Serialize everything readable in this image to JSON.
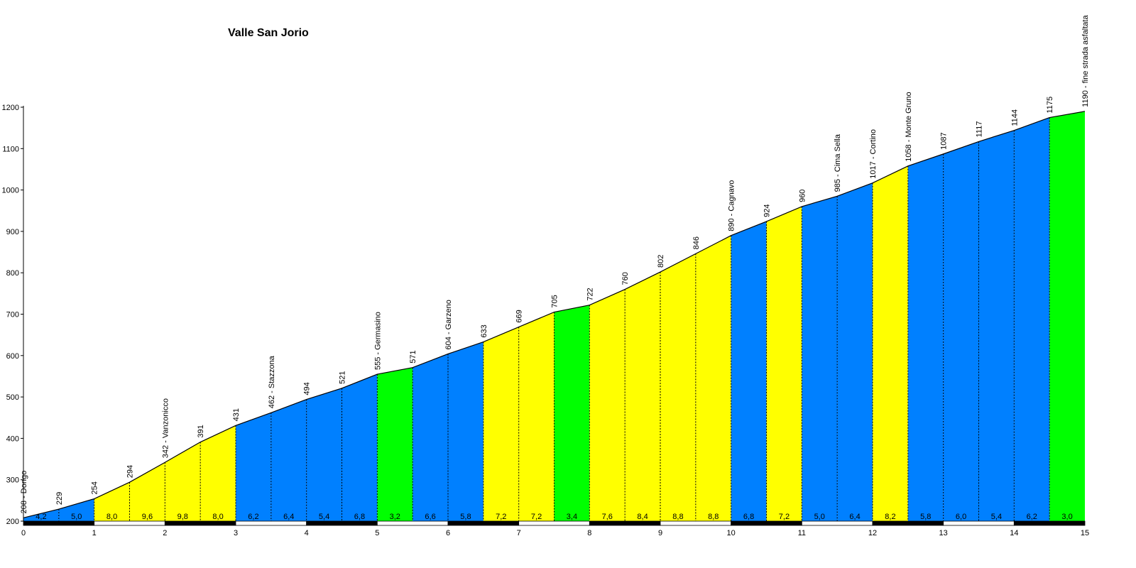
{
  "chart_data": {
    "type": "area",
    "title": "Valle San Jorio",
    "xlabel": "",
    "ylabel": "",
    "xlim": [
      0,
      15
    ],
    "ylim": [
      200,
      1200
    ],
    "x_ticks": [
      "0",
      "1",
      "2",
      "3",
      "4",
      "5",
      "6",
      "7",
      "8",
      "9",
      "10",
      "11",
      "12",
      "13",
      "14",
      "15"
    ],
    "y_ticks": [
      "200",
      "300",
      "400",
      "500",
      "600",
      "700",
      "800",
      "900",
      "1000",
      "1100",
      "1200"
    ],
    "grid": false,
    "legend": "none",
    "profile_points": [
      {
        "km": 0.0,
        "alt": 208,
        "label": "208 - Dongo"
      },
      {
        "km": 0.5,
        "alt": 229,
        "label": "229"
      },
      {
        "km": 1.0,
        "alt": 254,
        "label": "254"
      },
      {
        "km": 1.5,
        "alt": 294,
        "label": "294"
      },
      {
        "km": 2.0,
        "alt": 342,
        "label": "342 - Vanzonicco"
      },
      {
        "km": 2.5,
        "alt": 391,
        "label": "391"
      },
      {
        "km": 3.0,
        "alt": 431,
        "label": "431"
      },
      {
        "km": 3.5,
        "alt": 462,
        "label": "462 - Stazzona"
      },
      {
        "km": 4.0,
        "alt": 494,
        "label": "494"
      },
      {
        "km": 4.5,
        "alt": 521,
        "label": "521"
      },
      {
        "km": 5.0,
        "alt": 555,
        "label": "555 - Germasino"
      },
      {
        "km": 5.5,
        "alt": 571,
        "label": "571"
      },
      {
        "km": 6.0,
        "alt": 604,
        "label": "604 - Garzeno"
      },
      {
        "km": 6.5,
        "alt": 633,
        "label": "633"
      },
      {
        "km": 7.0,
        "alt": 669,
        "label": "669"
      },
      {
        "km": 7.5,
        "alt": 705,
        "label": "705"
      },
      {
        "km": 8.0,
        "alt": 722,
        "label": "722"
      },
      {
        "km": 8.5,
        "alt": 760,
        "label": "760"
      },
      {
        "km": 9.0,
        "alt": 802,
        "label": "802"
      },
      {
        "km": 9.5,
        "alt": 846,
        "label": "846"
      },
      {
        "km": 10.0,
        "alt": 890,
        "label": "890 - Cagnavo"
      },
      {
        "km": 10.5,
        "alt": 924,
        "label": "924"
      },
      {
        "km": 11.0,
        "alt": 960,
        "label": "960"
      },
      {
        "km": 11.5,
        "alt": 985,
        "label": "985 - Cima Sella"
      },
      {
        "km": 12.0,
        "alt": 1017,
        "label": "1017 - Cortino"
      },
      {
        "km": 12.5,
        "alt": 1058,
        "label": "1058 - Monte Gruno"
      },
      {
        "km": 13.0,
        "alt": 1087,
        "label": "1087"
      },
      {
        "km": 13.5,
        "alt": 1117,
        "label": "1117"
      },
      {
        "km": 14.0,
        "alt": 1144,
        "label": "1144"
      },
      {
        "km": 14.5,
        "alt": 1175,
        "label": "1175"
      },
      {
        "km": 15.0,
        "alt": 1190,
        "label": "1190 - fine strada asfaltata"
      }
    ],
    "segments": [
      {
        "from": 0.0,
        "to": 0.5,
        "gradient": "4,2",
        "color": "#0080ff"
      },
      {
        "from": 0.5,
        "to": 1.0,
        "gradient": "5,0",
        "color": "#0080ff"
      },
      {
        "from": 1.0,
        "to": 1.5,
        "gradient": "8,0",
        "color": "#ffff00"
      },
      {
        "from": 1.5,
        "to": 2.0,
        "gradient": "9,6",
        "color": "#ffff00"
      },
      {
        "from": 2.0,
        "to": 2.5,
        "gradient": "9,8",
        "color": "#ffff00"
      },
      {
        "from": 2.5,
        "to": 3.0,
        "gradient": "8,0",
        "color": "#ffff00"
      },
      {
        "from": 3.0,
        "to": 3.5,
        "gradient": "6,2",
        "color": "#0080ff"
      },
      {
        "from": 3.5,
        "to": 4.0,
        "gradient": "6,4",
        "color": "#0080ff"
      },
      {
        "from": 4.0,
        "to": 4.5,
        "gradient": "5,4",
        "color": "#0080ff"
      },
      {
        "from": 4.5,
        "to": 5.0,
        "gradient": "6,8",
        "color": "#0080ff"
      },
      {
        "from": 5.0,
        "to": 5.5,
        "gradient": "3,2",
        "color": "#00ff00"
      },
      {
        "from": 5.5,
        "to": 6.0,
        "gradient": "6,6",
        "color": "#0080ff"
      },
      {
        "from": 6.0,
        "to": 6.5,
        "gradient": "5,8",
        "color": "#0080ff"
      },
      {
        "from": 6.5,
        "to": 7.0,
        "gradient": "7,2",
        "color": "#ffff00"
      },
      {
        "from": 7.0,
        "to": 7.5,
        "gradient": "7,2",
        "color": "#ffff00"
      },
      {
        "from": 7.5,
        "to": 8.0,
        "gradient": "3,4",
        "color": "#00ff00"
      },
      {
        "from": 8.0,
        "to": 8.5,
        "gradient": "7,6",
        "color": "#ffff00"
      },
      {
        "from": 8.5,
        "to": 9.0,
        "gradient": "8,4",
        "color": "#ffff00"
      },
      {
        "from": 9.0,
        "to": 9.5,
        "gradient": "8,8",
        "color": "#ffff00"
      },
      {
        "from": 9.5,
        "to": 10.0,
        "gradient": "8,8",
        "color": "#ffff00"
      },
      {
        "from": 10.0,
        "to": 10.5,
        "gradient": "6,8",
        "color": "#0080ff"
      },
      {
        "from": 10.5,
        "to": 11.0,
        "gradient": "7,2",
        "color": "#ffff00"
      },
      {
        "from": 11.0,
        "to": 11.5,
        "gradient": "5,0",
        "color": "#0080ff"
      },
      {
        "from": 11.5,
        "to": 12.0,
        "gradient": "6,4",
        "color": "#0080ff"
      },
      {
        "from": 12.0,
        "to": 12.5,
        "gradient": "8,2",
        "color": "#ffff00"
      },
      {
        "from": 12.5,
        "to": 13.0,
        "gradient": "5,8",
        "color": "#0080ff"
      },
      {
        "from": 13.0,
        "to": 13.5,
        "gradient": "6,0",
        "color": "#0080ff"
      },
      {
        "from": 13.5,
        "to": 14.0,
        "gradient": "5,4",
        "color": "#0080ff"
      },
      {
        "from": 14.0,
        "to": 14.5,
        "gradient": "6,2",
        "color": "#0080ff"
      },
      {
        "from": 14.5,
        "to": 15.0,
        "gradient": "3,0",
        "color": "#00ff00"
      }
    ],
    "colors": {
      "steep": "#ffff00",
      "moderate": "#0080ff",
      "easy": "#00ff00",
      "outline": "#000000",
      "axis_text": "#000000"
    }
  }
}
